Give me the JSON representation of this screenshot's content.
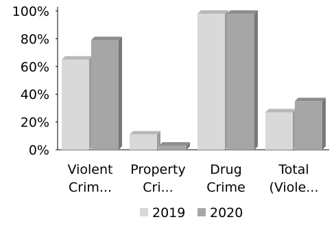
{
  "chart_data": {
    "type": "bar",
    "categories": [
      "Violent Crim...",
      "Property Cri...",
      "Drug Crime",
      "Total (Viole..."
    ],
    "series": [
      {
        "name": "2019",
        "values": [
          65,
          11,
          98,
          27
        ],
        "color": "#d9d9d9"
      },
      {
        "name": "2020",
        "values": [
          79,
          3,
          98,
          35
        ],
        "color": "#a6a6a6"
      }
    ],
    "y_tick_labels": [
      "0%",
      "20%",
      "40%",
      "60%",
      "80%",
      "100%"
    ],
    "ylim": [
      0,
      100
    ],
    "grid": false,
    "legend": "bottom"
  }
}
